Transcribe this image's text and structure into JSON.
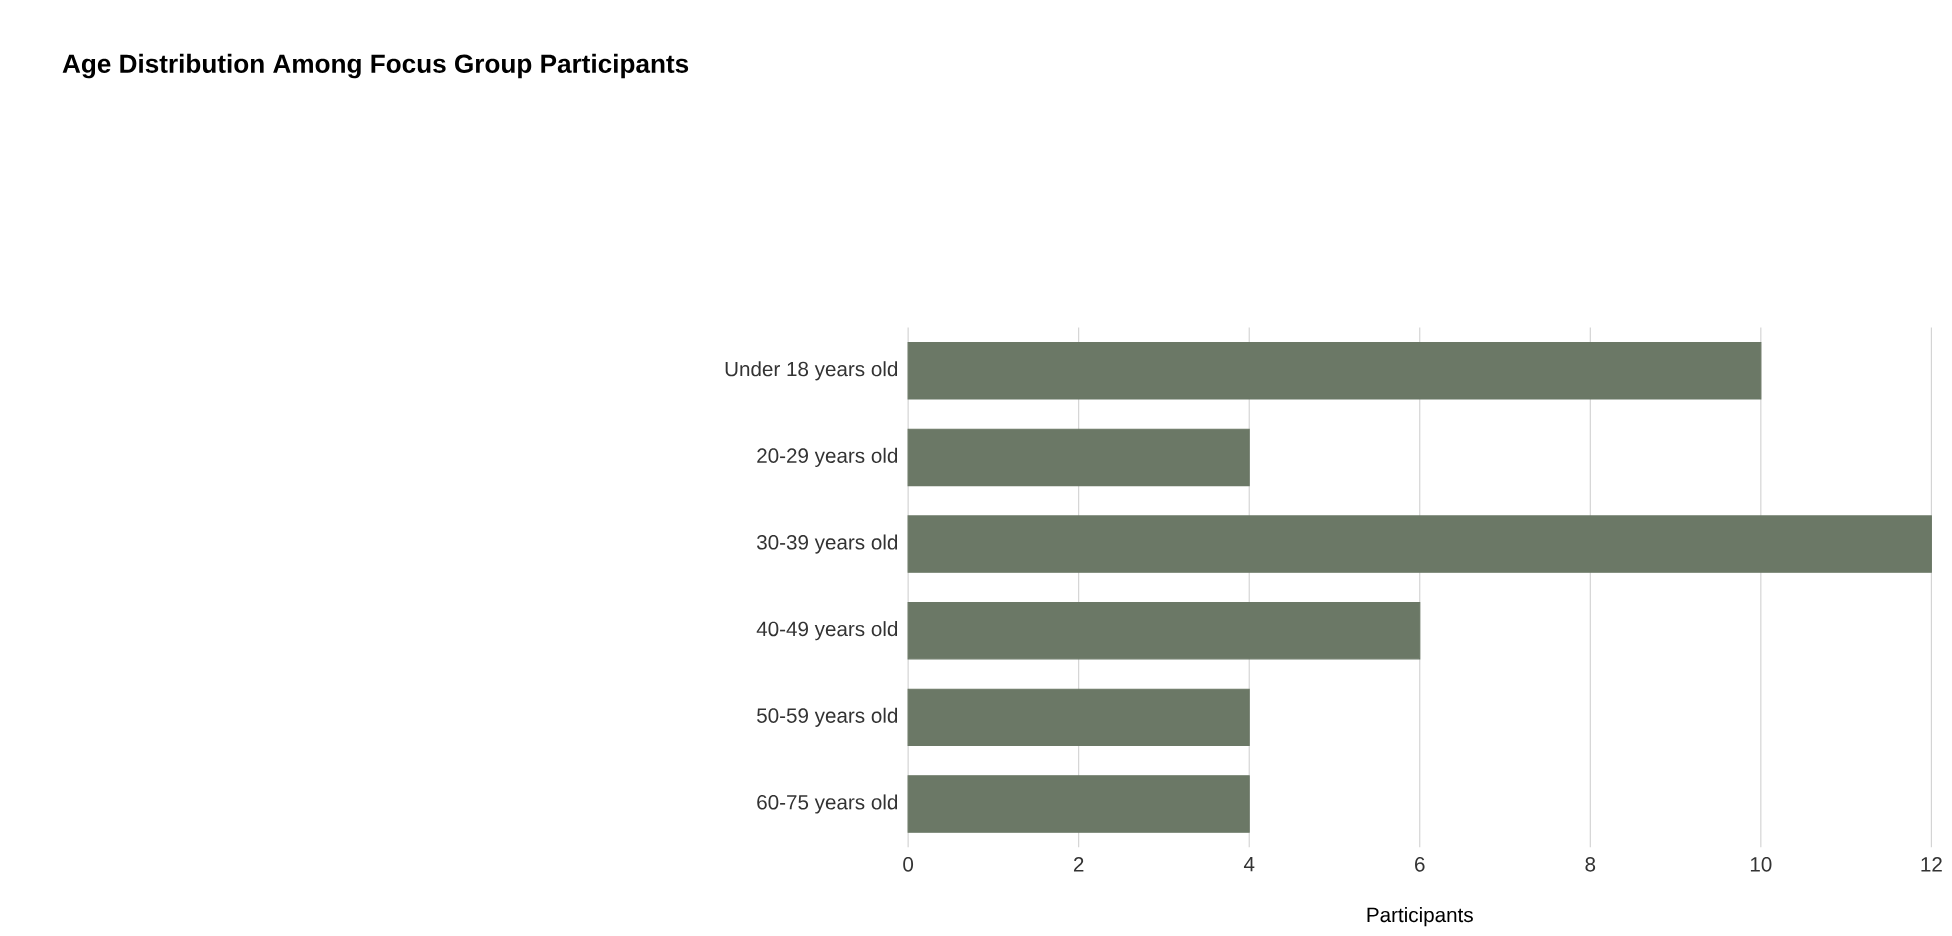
{
  "chart_data": {
    "type": "bar",
    "orientation": "horizontal",
    "title": "Age Distribution Among Focus Group Participants",
    "xlabel": "Participants",
    "categories": [
      "Under 18 years old",
      "20-29 years old",
      "30-39 years old",
      "40-49 years old",
      "50-59 years old",
      "60-75 years old"
    ],
    "values": [
      10,
      4,
      12,
      6,
      4,
      4
    ],
    "color": "#6b7866",
    "xlim": [
      0,
      12
    ],
    "xticks": [
      0,
      2,
      4,
      6,
      8,
      10,
      12
    ],
    "grid": "x"
  }
}
